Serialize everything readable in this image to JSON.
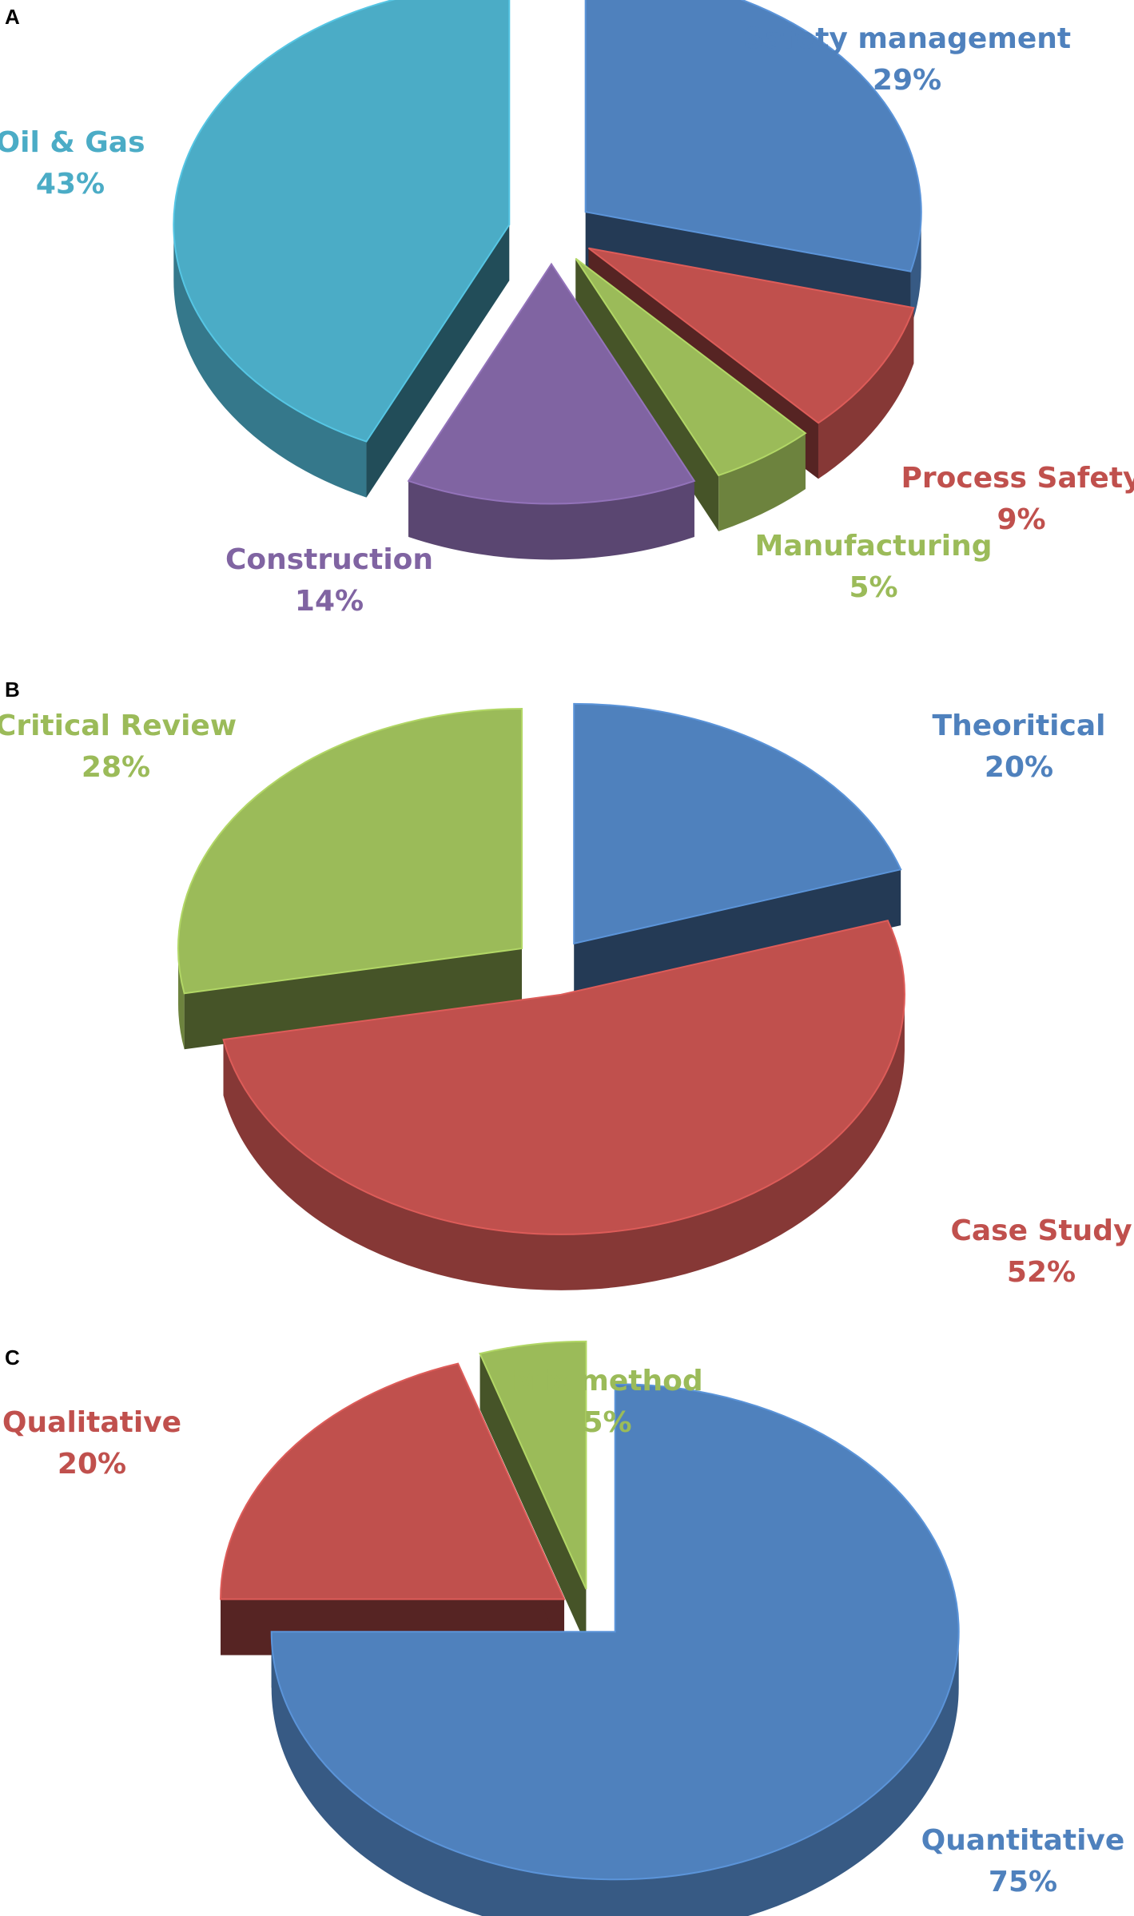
{
  "chart_data": [
    {
      "panel": "A",
      "type": "pie",
      "style": "3d-exploded",
      "slices": [
        {
          "name": "Safety management",
          "value": 29,
          "label": "29%",
          "color": "#4F81BD"
        },
        {
          "name": "Process Safety",
          "value": 9,
          "label": "9%",
          "color": "#C0504D"
        },
        {
          "name": "Manufacturing",
          "value": 5,
          "label": "5%",
          "color": "#9BBB59"
        },
        {
          "name": "Construction",
          "value": 14,
          "label": "14%",
          "color": "#8064A2"
        },
        {
          "name": "Oil & Gas",
          "value": 43,
          "label": "43%",
          "color": "#4BACC6"
        }
      ]
    },
    {
      "panel": "B",
      "type": "pie",
      "style": "3d-exploded",
      "slices": [
        {
          "name": "Theoritical",
          "value": 20,
          "label": "20%",
          "color": "#4F81BD"
        },
        {
          "name": "Case Study",
          "value": 52,
          "label": "52%",
          "color": "#C0504D"
        },
        {
          "name": "Critical Review",
          "value": 28,
          "label": "28%",
          "color": "#9BBB59"
        }
      ]
    },
    {
      "panel": "C",
      "type": "pie",
      "style": "3d-exploded",
      "slices": [
        {
          "name": "Quantitative",
          "value": 75,
          "label": "75%",
          "color": "#4F81BD"
        },
        {
          "name": "Qualitative",
          "value": 20,
          "label": "20%",
          "color": "#C0504D"
        },
        {
          "name": "Mix method",
          "value": 5,
          "label": "5%",
          "color": "#9BBB59"
        }
      ]
    }
  ]
}
